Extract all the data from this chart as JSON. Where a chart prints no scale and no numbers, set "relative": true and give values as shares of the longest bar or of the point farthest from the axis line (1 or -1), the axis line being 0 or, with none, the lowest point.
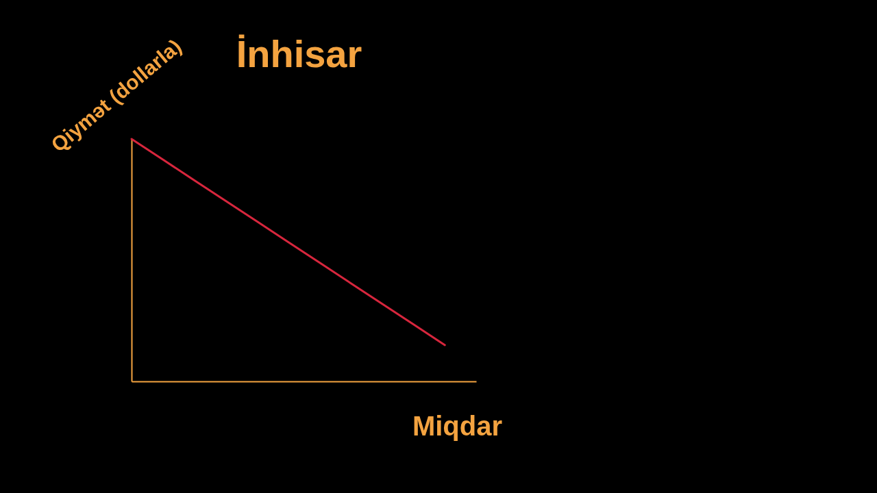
{
  "chart_data": {
    "type": "line",
    "title": "İnhisar",
    "xlabel": "Miqdar",
    "ylabel": "Qiymət (dollarla)",
    "relative": true,
    "categories": [
      null,
      null,
      null,
      null,
      null,
      null,
      null,
      null,
      null,
      null,
      null,
      null
    ],
    "series": [
      {
        "color": "#d7263d",
        "values": [
          1,
          0.915,
          0.83,
          0.745,
          0.66,
          0.575,
          0.49,
          0.405,
          0.32,
          0.235,
          0.15,
          null
        ]
      }
    ],
    "grid": false,
    "marker": "none",
    "line_style": "solid"
  }
}
